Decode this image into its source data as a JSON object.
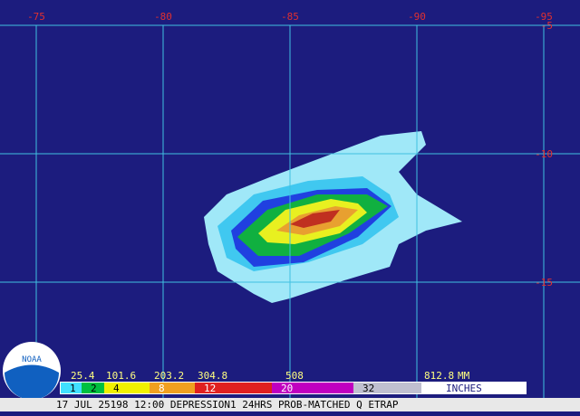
{
  "logo": "NOAA",
  "map": {
    "longitudes": [
      -75,
      -80,
      -85,
      -90,
      -95
    ],
    "latitudes": [
      -5,
      -10,
      -15
    ]
  },
  "colorbar": {
    "mm": [
      25.4,
      101.6,
      203.2,
      304.8,
      508,
      812.8
    ],
    "mm_unit": "MM",
    "inches": [
      {
        "label": "1",
        "color": "#40e0ff"
      },
      {
        "label": "2",
        "color": "#00c040"
      },
      {
        "label": "4",
        "color": "#f0f000"
      },
      {
        "label": "8",
        "color": "#f0a020"
      },
      {
        "label": "12",
        "color": "#e02020"
      },
      {
        "label": "20",
        "color": "#c000c0"
      },
      {
        "label": "32",
        "color": "#c0c0d0"
      }
    ],
    "inch_unit": "INCHES"
  },
  "footer": "17 JUL 25198 12:00 DEPRESSION1 24HRS PROB-MATCHED Q ETRAP"
}
